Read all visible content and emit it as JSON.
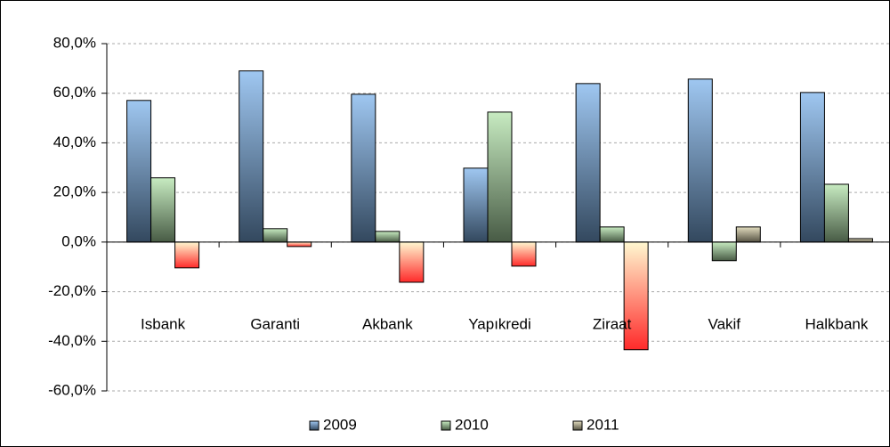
{
  "chart_data": {
    "type": "bar",
    "categories": [
      "Isbank",
      "Garanti",
      "Akbank",
      "Yapıkredi",
      "Ziraat",
      "Vakif",
      "Halkbank"
    ],
    "series": [
      {
        "name": "2009",
        "color": "#7fb4ec",
        "values": [
          57.1,
          69,
          59.6,
          29.8,
          63.9,
          65.7,
          60.3
        ]
      },
      {
        "name": "2010",
        "color": "#b4e4ac",
        "values": [
          25.9,
          5.4,
          4.3,
          52.4,
          6.1,
          -7.5,
          23.3
        ]
      },
      {
        "name": "2011",
        "color": "#d8d0a8",
        "negative_color": "#ff2a2a",
        "values": [
          -10.4,
          -1.8,
          -16.2,
          -9.7,
          -43.4,
          6.1,
          1.4
        ]
      }
    ],
    "ylim": [
      -60,
      80
    ],
    "yticks": [
      {
        "value": -60,
        "label": "-60,0%"
      },
      {
        "value": -40,
        "label": "-40,0%"
      },
      {
        "value": -20,
        "label": "-20,0%"
      },
      {
        "value": 0,
        "label": "0,0%"
      },
      {
        "value": 20,
        "label": "20,0%"
      },
      {
        "value": 40,
        "label": "40,0%"
      },
      {
        "value": 60,
        "label": "60,0%"
      },
      {
        "value": 80,
        "label": "80,0%"
      }
    ],
    "grid": true,
    "legend": "bottom"
  }
}
